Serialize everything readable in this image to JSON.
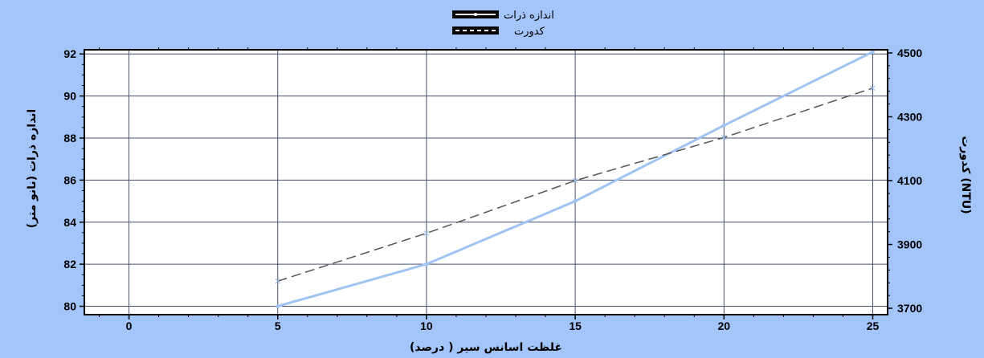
{
  "chart_data": {
    "type": "line",
    "xlabel": "غلظت اسانس سیر ( درصد)",
    "ylabel_left": "اندازه ذرات (نانو متر)",
    "ylabel_right": "کدورت (NTU)",
    "xlim": [
      -1.5,
      25.5
    ],
    "x_ticks": [
      0,
      5,
      10,
      15,
      20,
      25
    ],
    "ylim_left": [
      79.6,
      92.2
    ],
    "y_ticks_left": [
      80,
      82,
      84,
      86,
      88,
      90,
      92
    ],
    "ylim_right": [
      3680,
      4510
    ],
    "y_ticks_right": [
      3700,
      3900,
      4100,
      4300,
      4500
    ],
    "grid": true,
    "legend_position": "top-center",
    "series": [
      {
        "name": "اندازه ذرات",
        "axis": "left",
        "x": [
          5,
          10,
          15,
          20,
          25
        ],
        "values": [
          80.0,
          82.0,
          85.0,
          88.6,
          92.1
        ],
        "color": "#9fc3f2",
        "style": "solid"
      },
      {
        "name": "کدورت",
        "axis": "right",
        "x": [
          5,
          10,
          15,
          20,
          25
        ],
        "values": [
          3785,
          3935,
          4100,
          4235,
          4390
        ],
        "color": "#555555",
        "style": "dashed"
      }
    ],
    "colors": {
      "frame_background": "#a3c5fa",
      "plot_background": "#ffffff",
      "grid": "#47506a"
    }
  }
}
